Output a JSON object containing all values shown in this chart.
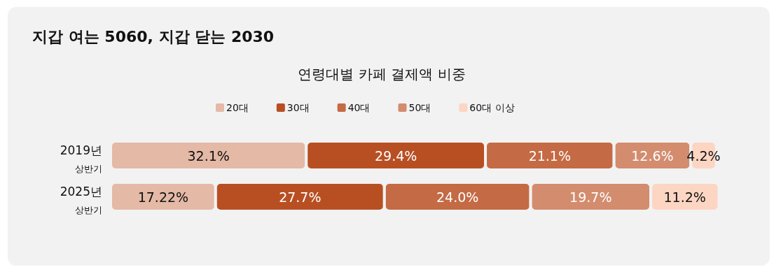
{
  "chart_data": {
    "type": "bar",
    "orientation": "horizontal",
    "stacked": true,
    "title": "지갑 여는 5060, 지갑 닫는 2030",
    "subtitle": "연령대별 카페 결제액 비중",
    "categories": [
      "2019년\n상반기",
      "2025년\n상반기"
    ],
    "legend": "top",
    "series": [
      {
        "name": "20대",
        "color": "#e4b9a6",
        "values": [
          32.1,
          17.22
        ],
        "value_labels": [
          "32.1%",
          "17.22%"
        ]
      },
      {
        "name": "30대",
        "color": "#b84f22",
        "values": [
          29.4,
          27.7
        ],
        "value_labels": [
          "29.4%",
          "27.7%"
        ]
      },
      {
        "name": "40대",
        "color": "#c46a44",
        "values": [
          21.1,
          24.0
        ],
        "value_labels": [
          "21.1%",
          "24.0%"
        ]
      },
      {
        "name": "50대",
        "color": "#d38c6e",
        "values": [
          12.6,
          19.7
        ],
        "value_labels": [
          "12.6%",
          "19.7%"
        ]
      },
      {
        "name": "60대 이상",
        "color": "#fdd5c3",
        "values": [
          4.2,
          11.2
        ],
        "value_labels": [
          "4.2%",
          "11.2%"
        ]
      }
    ]
  }
}
